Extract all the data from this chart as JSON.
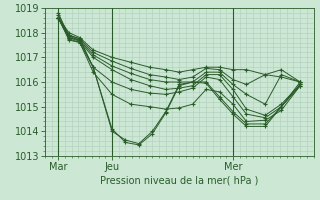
{
  "title": "",
  "xlabel": "Pression niveau de la mer( hPa )",
  "ylim": [
    1013,
    1019
  ],
  "xlim": [
    0,
    10
  ],
  "background_color": "#cce8d4",
  "grid_color": "#b0ccbb",
  "line_color": "#2a5c2a",
  "marker": "+",
  "marker_size": 3,
  "xtick_labels": [
    "Mar",
    "Jeu",
    "Mer"
  ],
  "xtick_positions": [
    0.5,
    2.5,
    7.0
  ],
  "vline_positions": [
    0.5,
    2.5,
    7.0
  ],
  "ytick_positions": [
    1013,
    1014,
    1015,
    1016,
    1017,
    1018,
    1019
  ],
  "series": [
    {
      "x": [
        0.5,
        0.9,
        1.3,
        1.8,
        2.5,
        3.2,
        3.9,
        4.5,
        5.0,
        5.5,
        6.0,
        6.5,
        7.0,
        7.5,
        8.2,
        8.8,
        9.5
      ],
      "y": [
        1018.6,
        1018.0,
        1017.8,
        1017.3,
        1017.0,
        1016.8,
        1016.6,
        1016.5,
        1016.4,
        1016.5,
        1016.6,
        1016.6,
        1016.5,
        1016.5,
        1016.3,
        1016.2,
        1016.0
      ]
    },
    {
      "x": [
        0.5,
        0.9,
        1.3,
        1.8,
        2.5,
        3.2,
        3.9,
        4.5,
        5.0,
        5.5,
        6.0,
        6.5,
        7.0,
        7.5,
        8.2,
        8.8,
        9.5
      ],
      "y": [
        1018.6,
        1017.9,
        1017.75,
        1017.2,
        1016.85,
        1016.55,
        1016.3,
        1016.2,
        1016.1,
        1016.2,
        1016.55,
        1016.5,
        1016.1,
        1015.9,
        1016.3,
        1016.5,
        1016.0
      ]
    },
    {
      "x": [
        0.5,
        0.9,
        1.3,
        1.8,
        2.5,
        3.2,
        3.9,
        4.5,
        5.0,
        5.5,
        6.0,
        6.5,
        7.0,
        7.5,
        8.2,
        8.8,
        9.5
      ],
      "y": [
        1018.6,
        1017.8,
        1017.7,
        1017.1,
        1016.65,
        1016.35,
        1016.1,
        1016.0,
        1016.0,
        1016.0,
        1016.4,
        1016.4,
        1015.9,
        1015.5,
        1015.1,
        1016.3,
        1016.0
      ]
    },
    {
      "x": [
        0.5,
        0.9,
        1.3,
        1.8,
        2.5,
        3.2,
        3.9,
        4.5,
        5.0,
        5.5,
        6.0,
        6.5,
        7.0,
        7.5,
        8.2,
        8.8,
        9.5
      ],
      "y": [
        1018.6,
        1017.8,
        1017.65,
        1017.0,
        1016.5,
        1016.1,
        1015.85,
        1015.7,
        1015.75,
        1015.85,
        1016.3,
        1016.3,
        1015.7,
        1014.9,
        1014.65,
        1015.1,
        1015.9
      ]
    },
    {
      "x": [
        0.5,
        0.9,
        1.3,
        1.8,
        2.5,
        3.2,
        3.9,
        4.5,
        5.0,
        5.5,
        6.0,
        6.5,
        7.0,
        7.5,
        8.2,
        8.8,
        9.5
      ],
      "y": [
        1018.6,
        1017.7,
        1017.6,
        1016.6,
        1016.0,
        1015.7,
        1015.55,
        1015.5,
        1015.6,
        1015.75,
        1016.2,
        1016.1,
        1015.4,
        1014.7,
        1014.55,
        1015.0,
        1015.9
      ]
    },
    {
      "x": [
        0.5,
        0.9,
        1.3,
        1.8,
        2.5,
        3.2,
        3.9,
        4.5,
        5.0,
        5.5,
        6.0,
        6.5,
        7.0,
        7.5,
        8.2,
        8.8,
        9.5
      ],
      "y": [
        1018.6,
        1017.75,
        1017.6,
        1016.4,
        1015.5,
        1015.1,
        1015.0,
        1014.9,
        1014.95,
        1015.1,
        1015.7,
        1015.6,
        1015.1,
        1014.4,
        1014.45,
        1014.85,
        1015.85
      ]
    },
    {
      "x": [
        0.5,
        0.9,
        1.3,
        1.8,
        2.5,
        3.0,
        3.5,
        4.0,
        4.5,
        5.0,
        5.5,
        6.0,
        6.5,
        7.0,
        7.5,
        8.2,
        8.8,
        9.5
      ],
      "y": [
        1018.8,
        1017.85,
        1017.7,
        1016.6,
        1014.0,
        1013.65,
        1013.5,
        1014.0,
        1014.8,
        1015.9,
        1016.0,
        1016.0,
        1015.4,
        1014.8,
        1014.3,
        1014.3,
        1015.0,
        1016.0
      ]
    },
    {
      "x": [
        0.5,
        0.9,
        1.3,
        1.8,
        2.5,
        3.0,
        3.5,
        4.0,
        4.5,
        5.0,
        5.5,
        6.0,
        6.5,
        7.0,
        7.5,
        8.2,
        8.8,
        9.5
      ],
      "y": [
        1018.7,
        1017.9,
        1017.75,
        1016.6,
        1014.1,
        1013.55,
        1013.45,
        1013.9,
        1014.75,
        1015.85,
        1016.0,
        1015.95,
        1015.3,
        1014.7,
        1014.2,
        1014.2,
        1015.0,
        1015.85
      ]
    }
  ]
}
